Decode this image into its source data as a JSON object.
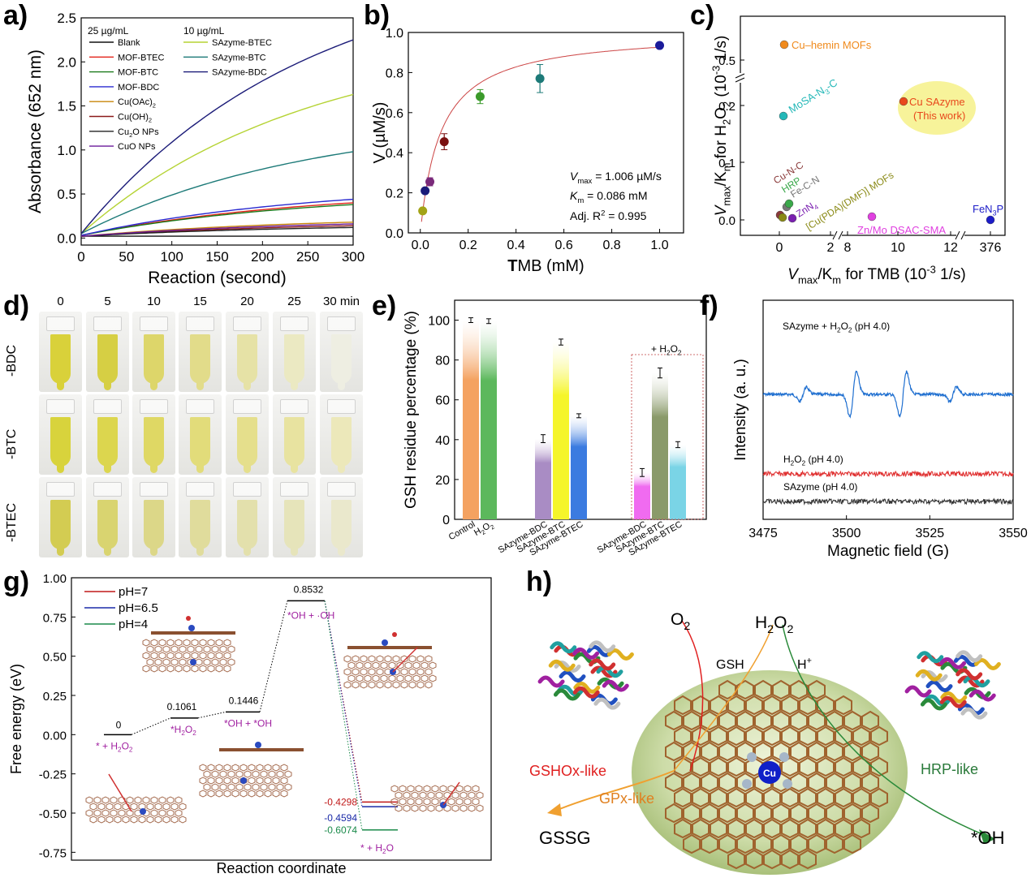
{
  "panels": {
    "a": "a)",
    "b": "b)",
    "c": "c)",
    "d": "d)",
    "e": "e)",
    "f": "f)",
    "g": "g)",
    "h": "h)"
  },
  "chart_data": [
    {
      "panel": "a",
      "type": "line",
      "xlabel": "Reaction (second)",
      "ylabel": "Absorbance (652 nm)",
      "xlim": [
        0,
        300
      ],
      "ylim": [
        -0.08,
        2.5
      ],
      "xticks": [
        "0",
        "50",
        "100",
        "150",
        "200",
        "250",
        "300"
      ],
      "yticks": [
        "0.0",
        "0.5",
        "1.0",
        "1.5",
        "2.0",
        "2.5"
      ],
      "legend_headers": [
        "25 µg/mL",
        "10 µg/mL"
      ],
      "series": [
        {
          "name": "Blank",
          "color": "#111111",
          "start": 0.02,
          "end": 0.02
        },
        {
          "name": "MOF-BTEC",
          "color": "#e3241b",
          "start": 0.03,
          "end": 0.4
        },
        {
          "name": "MOF-BTC",
          "color": "#1a7a1a",
          "start": 0.03,
          "end": 0.38
        },
        {
          "name": "MOF-BDC",
          "color": "#2a2ad0",
          "start": 0.03,
          "end": 0.44
        },
        {
          "name": "Cu(OAc)2",
          "color": "#c8860a",
          "start": 0.02,
          "end": 0.18
        },
        {
          "name": "Cu(OH)2",
          "color": "#8b1a1a",
          "start": 0.02,
          "end": 0.14
        },
        {
          "name": "Cu2O NPs",
          "color": "#222222",
          "start": 0.02,
          "end": 0.12
        },
        {
          "name": "CuO NPs",
          "color": "#6a1a9a",
          "start": 0.02,
          "end": 0.16
        },
        {
          "name": "SAzyme-BTEC",
          "color": "#b5d334",
          "start": 0.05,
          "end": 1.63
        },
        {
          "name": "SAzyme-BTC",
          "color": "#1d7a78",
          "start": 0.05,
          "end": 0.98
        },
        {
          "name": "SAzyme-BDC",
          "color": "#1b1b78",
          "start": 0.05,
          "end": 2.25
        }
      ]
    },
    {
      "panel": "b",
      "type": "scatter",
      "xlabel_bold": "T",
      "xlabel_rest": "MB (mM)",
      "ylabel": "V (µM/s)",
      "xlim": [
        -0.05,
        1.1
      ],
      "ylim": [
        0,
        1.0
      ],
      "xticks": [
        0,
        0.2,
        0.4,
        0.6,
        0.8,
        1.0
      ],
      "xtick_labels": [
        "0.0",
        "0.2",
        "0.4",
        "0.6",
        "0.8",
        "1.0"
      ],
      "yticks": [
        0,
        0.2,
        0.4,
        0.6,
        0.8,
        1.0
      ],
      "ytick_labels": [
        "0.0",
        "0.2",
        "0.4",
        "0.6",
        "0.8",
        "1.0"
      ],
      "points": [
        {
          "x": 0.01,
          "y": 0.11,
          "err": 0.0,
          "color": "#a3a316"
        },
        {
          "x": 0.02,
          "y": 0.21,
          "err": 0.0,
          "color": "#1b1b78"
        },
        {
          "x": 0.04,
          "y": 0.255,
          "err": 0.02,
          "color": "#7a2a7a"
        },
        {
          "x": 0.1,
          "y": 0.455,
          "err": 0.04,
          "color": "#7a1010"
        },
        {
          "x": 0.25,
          "y": 0.68,
          "err": 0.035,
          "color": "#3b9a2b"
        },
        {
          "x": 0.5,
          "y": 0.77,
          "err": 0.07,
          "color": "#1d7a78"
        },
        {
          "x": 1.0,
          "y": 0.935,
          "err": 0.0,
          "color": "#1b1b9a"
        }
      ],
      "fit": {
        "vmax": 1.006,
        "km": 0.086,
        "color": "#cc4444"
      },
      "annotations": [
        "= 1.006 µM/s",
        "= 0.086 mM",
        "Adj. R",
        "= 0.995"
      ],
      "annotation_symbols": [
        "V",
        "max",
        "K",
        "m",
        "2"
      ]
    },
    {
      "panel": "c",
      "type": "scatter",
      "xlabel_parts": [
        "V",
        "max",
        "/K",
        "m",
        " for TMB (10",
        "-3",
        " 1/s)"
      ],
      "ylabel_parts": [
        "V",
        "max",
        "/K",
        "m",
        " for H",
        "2",
        "O",
        "2",
        " (10",
        "-3",
        " 1/s)"
      ],
      "xtick_labels": [
        "0",
        "2",
        "8",
        "10",
        "12",
        "376"
      ],
      "ytick_labels": [
        "0.0",
        "0.1",
        "0.2",
        "0.5"
      ],
      "points": [
        {
          "label": "Cu–hemin MOFs",
          "color": "#f08a1c"
        },
        {
          "label": "MoSA-N3-C",
          "color": "#25b8b8"
        },
        {
          "label": "Cu SAzyme",
          "sub": "(This work)",
          "color": "#e8481c"
        },
        {
          "label": "Cu-N-C",
          "color": "#8a3a3a"
        },
        {
          "label": "HRP",
          "color": "#3aa84a"
        },
        {
          "label": "Fe-C-N",
          "color": "#777777"
        },
        {
          "label": "ZnN4",
          "color": "#7a1fb0"
        },
        {
          "label": "[Cu(PDA)(DMF)] MOFs",
          "color": "#8a8a16"
        },
        {
          "label": "Zn/Mo DSAC-SMA",
          "color": "#e040e0"
        },
        {
          "label": "FeN3P",
          "color": "#1c1cc8"
        }
      ]
    },
    {
      "panel": "e",
      "type": "bar",
      "ylabel": "GSH residue percentage (%)",
      "ylim": [
        0,
        110
      ],
      "yticks": [
        "0",
        "20",
        "40",
        "60",
        "80",
        "100"
      ],
      "annotation": "+ H2O2",
      "categories": [
        "Control",
        "H2O2",
        "SAzyme-BDC",
        "SAzyme-BTC",
        "SAzyme-BTEC",
        "SAzyme-BDC",
        "SAzyme-BTC",
        "SAzyme-BTEC"
      ],
      "values": [
        100,
        99.5,
        40.5,
        89,
        52,
        23.5,
        73.5,
        37.5
      ],
      "errors": [
        1.2,
        1.2,
        2,
        1.5,
        1,
        2,
        2.5,
        1.5
      ],
      "colors": [
        "#f4a261",
        "#5cb85c",
        "#a98cc4",
        "#f5f52a",
        "#3b7be0",
        "#f06bf0",
        "#8a9a6a",
        "#7ad4e6"
      ]
    },
    {
      "panel": "f",
      "type": "line",
      "xlabel": "Magnetic field (G)",
      "ylabel": "Intensity (a. u.)",
      "xlim": [
        3475,
        3550
      ],
      "xticks": [
        "3475",
        "3500",
        "3525",
        "3550"
      ],
      "series": [
        {
          "name": "SAzyme + H2O2 (pH 4.0)",
          "color": "#1f6fd0"
        },
        {
          "name": "H2O2 (pH 4.0)",
          "color": "#e03030"
        },
        {
          "name": "SAzyme (pH 4.0)",
          "color": "#333333"
        }
      ]
    },
    {
      "panel": "g",
      "type": "line",
      "xlabel": "Reaction coordinate",
      "ylabel": "Free energy (eV)",
      "ylim": [
        -0.8,
        1.0
      ],
      "yticks": [
        "1.00",
        "0.75",
        "0.50",
        "0.25",
        "0.00",
        "-0.25",
        "-0.50",
        "-0.75"
      ],
      "series": [
        {
          "name": "pH=7",
          "color": "#c01818"
        },
        {
          "name": "pH=6.5",
          "color": "#1a2aa8"
        },
        {
          "name": "pH=4",
          "color": "#1a8a4a"
        }
      ],
      "levels": [
        {
          "label": "* + H2O2",
          "value": "0"
        },
        {
          "label": "*H2O2",
          "value": "0.1061"
        },
        {
          "label": "*OH + *OH",
          "value": "0.1446"
        },
        {
          "label": "*OH + ·OH",
          "value": "0.8532"
        },
        {
          "label": "* + H2O",
          "value": "-0.4298"
        }
      ],
      "final_values": [
        "-0.4298",
        "-0.4594",
        "-0.6074"
      ]
    }
  ],
  "photo": {
    "times": [
      "0",
      "5",
      "10",
      "15",
      "20",
      "25",
      "30 min"
    ],
    "rows": [
      "-BDC",
      "-BTC",
      "-BTEC"
    ]
  },
  "scheme": {
    "labels": {
      "o2": "O",
      "o2_sub": "2",
      "h2o2": "H",
      "h2o2_sub1": "2",
      "h2o2_o": "O",
      "h2o2_sub2": "2",
      "gsh": "GSH",
      "hplus": "H",
      "hplus_sup": "+",
      "gshox": "GSHOx-like",
      "gpx": "GPx-like",
      "hrp": "HRP-like",
      "gssg": "GSSG",
      "oh": "*OH",
      "cu": "Cu"
    }
  },
  "text": {
    "c_cu_hemin": "Cu–hemin MOFs",
    "c_mosa": "MoSA-N",
    "c_mosa_sub": "3",
    "c_mosa_rest": "-C",
    "c_cu_saz": "Cu SAzyme",
    "c_this": "(This work)",
    "c_cunc": "Cu-N-C",
    "c_hrp": "HRP",
    "c_fecn": "Fe-C-N",
    "c_znn": "ZnN",
    "c_znn_sub": "4",
    "c_cupda": "[Cu(PDA)(DMF)] MOFs",
    "c_znmo": "Zn/Mo DSAC-SMA",
    "c_fen": "FeN",
    "c_fen_sub": "3",
    "c_fen_p": "P",
    "e_h2o2": "+ H",
    "e_h2o2_sub1": "2",
    "e_h2o2_o": "O",
    "e_h2o2_sub2": "2",
    "f_s1a": "SAzyme + H",
    "f_s1b": "2",
    "f_s1c": "O",
    "f_s1d": "2",
    "f_s1e": " (pH 4.0)",
    "f_s2a": "H",
    "f_s2b": "2",
    "f_s2c": "O",
    "f_s2d": "2",
    "f_s2e": " (pH 4.0)",
    "f_s3": "SAzyme (pH 4.0)",
    "a_legend": [
      "Blank",
      "MOF-BTEC",
      "MOF-BTC",
      "MOF-BDC",
      "Cu(OAc)",
      "Cu(OH)",
      "Cu",
      "CuO NPs"
    ],
    "a_legend_subs": [
      "2",
      "2",
      "2"
    ],
    "a_legend_tail": [
      "O NPs"
    ]
  }
}
